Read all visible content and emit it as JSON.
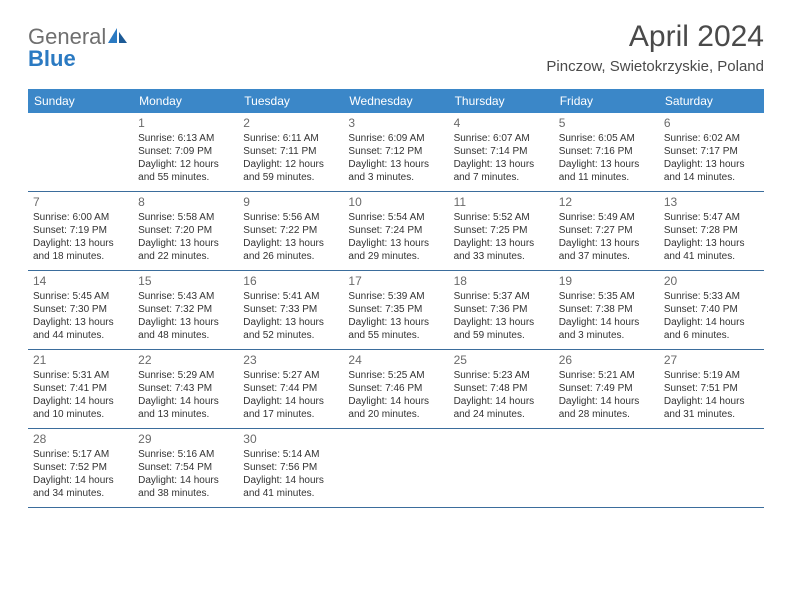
{
  "logo": {
    "general": "General",
    "blue": "Blue"
  },
  "title": "April 2024",
  "location": "Pinczow, Swietokrzyskie, Poland",
  "day_headers": [
    "Sunday",
    "Monday",
    "Tuesday",
    "Wednesday",
    "Thursday",
    "Friday",
    "Saturday"
  ],
  "colors": {
    "header_bg": "#3b87c8",
    "header_text": "#ffffff",
    "row_border": "#3b6d9c",
    "title_text": "#4a4a4a",
    "body_text": "#333333",
    "logo_gray": "#6f6f6f",
    "logo_blue": "#2b7ac2"
  },
  "weeks": [
    [
      {
        "num": "",
        "lines": []
      },
      {
        "num": "1",
        "lines": [
          "Sunrise: 6:13 AM",
          "Sunset: 7:09 PM",
          "Daylight: 12 hours",
          "and 55 minutes."
        ]
      },
      {
        "num": "2",
        "lines": [
          "Sunrise: 6:11 AM",
          "Sunset: 7:11 PM",
          "Daylight: 12 hours",
          "and 59 minutes."
        ]
      },
      {
        "num": "3",
        "lines": [
          "Sunrise: 6:09 AM",
          "Sunset: 7:12 PM",
          "Daylight: 13 hours",
          "and 3 minutes."
        ]
      },
      {
        "num": "4",
        "lines": [
          "Sunrise: 6:07 AM",
          "Sunset: 7:14 PM",
          "Daylight: 13 hours",
          "and 7 minutes."
        ]
      },
      {
        "num": "5",
        "lines": [
          "Sunrise: 6:05 AM",
          "Sunset: 7:16 PM",
          "Daylight: 13 hours",
          "and 11 minutes."
        ]
      },
      {
        "num": "6",
        "lines": [
          "Sunrise: 6:02 AM",
          "Sunset: 7:17 PM",
          "Daylight: 13 hours",
          "and 14 minutes."
        ]
      }
    ],
    [
      {
        "num": "7",
        "lines": [
          "Sunrise: 6:00 AM",
          "Sunset: 7:19 PM",
          "Daylight: 13 hours",
          "and 18 minutes."
        ]
      },
      {
        "num": "8",
        "lines": [
          "Sunrise: 5:58 AM",
          "Sunset: 7:20 PM",
          "Daylight: 13 hours",
          "and 22 minutes."
        ]
      },
      {
        "num": "9",
        "lines": [
          "Sunrise: 5:56 AM",
          "Sunset: 7:22 PM",
          "Daylight: 13 hours",
          "and 26 minutes."
        ]
      },
      {
        "num": "10",
        "lines": [
          "Sunrise: 5:54 AM",
          "Sunset: 7:24 PM",
          "Daylight: 13 hours",
          "and 29 minutes."
        ]
      },
      {
        "num": "11",
        "lines": [
          "Sunrise: 5:52 AM",
          "Sunset: 7:25 PM",
          "Daylight: 13 hours",
          "and 33 minutes."
        ]
      },
      {
        "num": "12",
        "lines": [
          "Sunrise: 5:49 AM",
          "Sunset: 7:27 PM",
          "Daylight: 13 hours",
          "and 37 minutes."
        ]
      },
      {
        "num": "13",
        "lines": [
          "Sunrise: 5:47 AM",
          "Sunset: 7:28 PM",
          "Daylight: 13 hours",
          "and 41 minutes."
        ]
      }
    ],
    [
      {
        "num": "14",
        "lines": [
          "Sunrise: 5:45 AM",
          "Sunset: 7:30 PM",
          "Daylight: 13 hours",
          "and 44 minutes."
        ]
      },
      {
        "num": "15",
        "lines": [
          "Sunrise: 5:43 AM",
          "Sunset: 7:32 PM",
          "Daylight: 13 hours",
          "and 48 minutes."
        ]
      },
      {
        "num": "16",
        "lines": [
          "Sunrise: 5:41 AM",
          "Sunset: 7:33 PM",
          "Daylight: 13 hours",
          "and 52 minutes."
        ]
      },
      {
        "num": "17",
        "lines": [
          "Sunrise: 5:39 AM",
          "Sunset: 7:35 PM",
          "Daylight: 13 hours",
          "and 55 minutes."
        ]
      },
      {
        "num": "18",
        "lines": [
          "Sunrise: 5:37 AM",
          "Sunset: 7:36 PM",
          "Daylight: 13 hours",
          "and 59 minutes."
        ]
      },
      {
        "num": "19",
        "lines": [
          "Sunrise: 5:35 AM",
          "Sunset: 7:38 PM",
          "Daylight: 14 hours",
          "and 3 minutes."
        ]
      },
      {
        "num": "20",
        "lines": [
          "Sunrise: 5:33 AM",
          "Sunset: 7:40 PM",
          "Daylight: 14 hours",
          "and 6 minutes."
        ]
      }
    ],
    [
      {
        "num": "21",
        "lines": [
          "Sunrise: 5:31 AM",
          "Sunset: 7:41 PM",
          "Daylight: 14 hours",
          "and 10 minutes."
        ]
      },
      {
        "num": "22",
        "lines": [
          "Sunrise: 5:29 AM",
          "Sunset: 7:43 PM",
          "Daylight: 14 hours",
          "and 13 minutes."
        ]
      },
      {
        "num": "23",
        "lines": [
          "Sunrise: 5:27 AM",
          "Sunset: 7:44 PM",
          "Daylight: 14 hours",
          "and 17 minutes."
        ]
      },
      {
        "num": "24",
        "lines": [
          "Sunrise: 5:25 AM",
          "Sunset: 7:46 PM",
          "Daylight: 14 hours",
          "and 20 minutes."
        ]
      },
      {
        "num": "25",
        "lines": [
          "Sunrise: 5:23 AM",
          "Sunset: 7:48 PM",
          "Daylight: 14 hours",
          "and 24 minutes."
        ]
      },
      {
        "num": "26",
        "lines": [
          "Sunrise: 5:21 AM",
          "Sunset: 7:49 PM",
          "Daylight: 14 hours",
          "and 28 minutes."
        ]
      },
      {
        "num": "27",
        "lines": [
          "Sunrise: 5:19 AM",
          "Sunset: 7:51 PM",
          "Daylight: 14 hours",
          "and 31 minutes."
        ]
      }
    ],
    [
      {
        "num": "28",
        "lines": [
          "Sunrise: 5:17 AM",
          "Sunset: 7:52 PM",
          "Daylight: 14 hours",
          "and 34 minutes."
        ]
      },
      {
        "num": "29",
        "lines": [
          "Sunrise: 5:16 AM",
          "Sunset: 7:54 PM",
          "Daylight: 14 hours",
          "and 38 minutes."
        ]
      },
      {
        "num": "30",
        "lines": [
          "Sunrise: 5:14 AM",
          "Sunset: 7:56 PM",
          "Daylight: 14 hours",
          "and 41 minutes."
        ]
      },
      {
        "num": "",
        "lines": []
      },
      {
        "num": "",
        "lines": []
      },
      {
        "num": "",
        "lines": []
      },
      {
        "num": "",
        "lines": []
      }
    ]
  ]
}
